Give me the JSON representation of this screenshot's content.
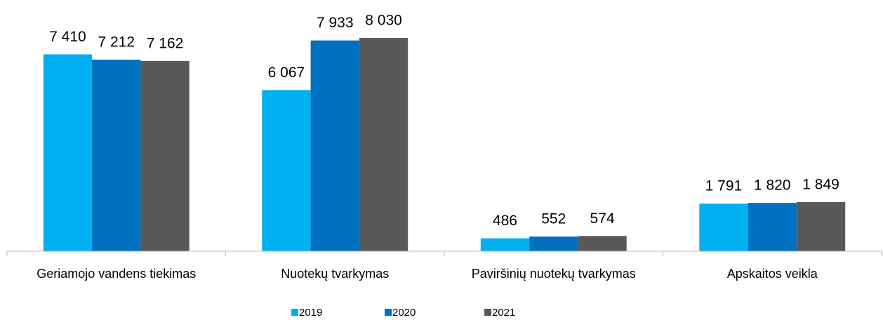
{
  "chart_data": {
    "type": "bar",
    "categories": [
      "Geriamojo vandens tiekimas",
      "Nuotekų tvarkymas",
      "Paviršinių nuotekų tvarkymas",
      "Apskaitos veikla"
    ],
    "series": [
      {
        "name": "2019",
        "color": "#00b0f0",
        "values": [
          7410,
          6067,
          486,
          1791
        ],
        "value_labels": [
          "7 410",
          "6 067",
          "486",
          "1 791"
        ]
      },
      {
        "name": "2020",
        "color": "#0070c0",
        "values": [
          7212,
          7933,
          552,
          1820
        ],
        "value_labels": [
          "7 212",
          "7 933",
          "552",
          "1 820"
        ]
      },
      {
        "name": "2021",
        "color": "#595959",
        "values": [
          7162,
          8030,
          574,
          1849
        ],
        "value_labels": [
          "7 162",
          "8 030",
          "574",
          "1 849"
        ]
      }
    ],
    "legend": "bottom"
  }
}
